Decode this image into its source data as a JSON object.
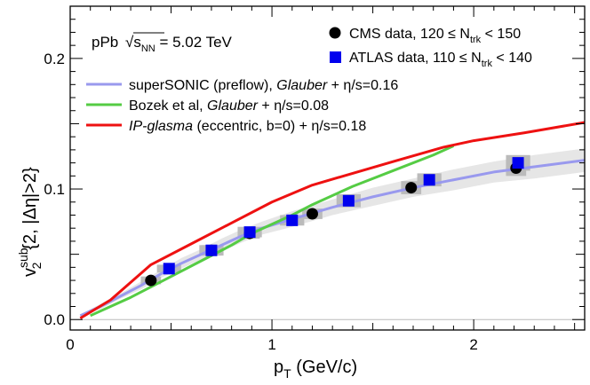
{
  "chart_data": {
    "type": "scatter",
    "title": "",
    "system_label": "pPb",
    "sqrt_snn_symbol": "s",
    "sqrt_snn_sub": "NN",
    "energy_text": " = 5.02 TeV",
    "xlabel": {
      "main": "p",
      "sub": "T",
      "rest": " (GeV/c)"
    },
    "ylabel": {
      "main": "v",
      "sub": "2",
      "sup": "sub",
      "rest": "{2, |Δη|>2}"
    },
    "xlim": [
      0,
      2.55
    ],
    "ylim": [
      -0.008,
      0.24
    ],
    "x_ticks": [
      0,
      1,
      2
    ],
    "x_tick_labels": [
      "0",
      "1",
      "2"
    ],
    "y_ticks": [
      0.0,
      0.1,
      0.2
    ],
    "y_tick_labels": [
      "0.0",
      "0.1",
      "0.2"
    ],
    "colors": {
      "cms": "#000000",
      "atlas": "#0000ee",
      "supersonic": "#9999ee",
      "bozek": "#55cc44",
      "ipglasma": "#ee1111",
      "band": "#e6e6e6",
      "syst": "#bbbbbb",
      "zero_line": "#bbbbbb"
    },
    "legend_data": [
      {
        "key": "cms",
        "marker": "circle",
        "prefix": "CMS data, 120 ≤ N",
        "sub": "trk",
        "suffix": " < 150"
      },
      {
        "key": "atlas",
        "marker": "square",
        "prefix": "ATLAS data, 110 ≤ N",
        "sub": "trk",
        "suffix": " < 140"
      }
    ],
    "legend_models": [
      {
        "key": "supersonic",
        "pre": "superSONIC (preflow), ",
        "ital": "Glauber",
        "post": " + η/s=0.16"
      },
      {
        "key": "bozek",
        "pre": "Bozek et al, ",
        "ital": "Glauber",
        "post": " + η/s=0.08"
      },
      {
        "key": "ipglasma",
        "pre": "",
        "ital": "IP-glasma",
        "post": " (eccentric, b=0) + η/s=0.18"
      }
    ],
    "series": [
      {
        "name": "CMS data",
        "key": "cms",
        "kind": "points",
        "marker": "circle",
        "x": [
          0.4,
          0.7,
          0.89,
          1.2,
          1.69,
          2.21
        ],
        "y": [
          0.03,
          0.053,
          0.066,
          0.081,
          0.101,
          0.116
        ],
        "syst_halfwidth": 0.05,
        "syst": [
          0.003,
          0.004,
          0.004,
          0.004,
          0.005,
          0.006
        ]
      },
      {
        "name": "ATLAS data",
        "key": "atlas",
        "kind": "points",
        "marker": "square",
        "x": [
          0.49,
          0.7,
          0.89,
          1.1,
          1.38,
          1.78,
          2.22
        ],
        "y": [
          0.039,
          0.053,
          0.067,
          0.076,
          0.091,
          0.107,
          0.12
        ],
        "syst_halfwidth": 0.06,
        "syst": [
          0.003,
          0.004,
          0.004,
          0.004,
          0.005,
          0.005,
          0.006
        ]
      },
      {
        "name": "superSONIC (preflow), Glauber + η/s=0.16",
        "key": "supersonic",
        "kind": "band_line",
        "x": [
          0.05,
          0.15,
          0.25,
          0.35,
          0.45,
          0.55,
          0.65,
          0.75,
          0.85,
          0.95,
          1.1,
          1.3,
          1.5,
          1.7,
          1.9,
          2.1,
          2.3,
          2.55
        ],
        "y": [
          0.003,
          0.01,
          0.018,
          0.026,
          0.035,
          0.043,
          0.05,
          0.057,
          0.064,
          0.07,
          0.077,
          0.086,
          0.094,
          0.101,
          0.107,
          0.113,
          0.117,
          0.122
        ],
        "band": [
          0.001,
          0.002,
          0.002,
          0.003,
          0.003,
          0.004,
          0.004,
          0.005,
          0.005,
          0.005,
          0.006,
          0.006,
          0.007,
          0.007,
          0.008,
          0.008,
          0.009,
          0.009
        ]
      },
      {
        "name": "Bozek et al, Glauber + η/s=0.08",
        "key": "bozek",
        "kind": "line",
        "x": [
          0.1,
          0.2,
          0.3,
          0.4,
          0.5,
          0.6,
          0.7,
          0.8,
          0.9,
          1.0,
          1.1,
          1.2,
          1.4,
          1.6,
          1.8,
          1.9
        ],
        "y": [
          0.003,
          0.01,
          0.017,
          0.025,
          0.033,
          0.041,
          0.049,
          0.057,
          0.066,
          0.073,
          0.08,
          0.088,
          0.102,
          0.114,
          0.126,
          0.133
        ]
      },
      {
        "name": "IP-glasma (eccentric, b=0) + η/s=0.18",
        "key": "ipglasma",
        "kind": "line",
        "x": [
          0.05,
          0.2,
          0.4,
          0.6,
          0.8,
          1.0,
          1.2,
          1.4,
          1.6,
          1.85,
          2.0,
          2.25,
          2.55
        ],
        "y": [
          0.001,
          0.015,
          0.042,
          0.058,
          0.074,
          0.09,
          0.103,
          0.112,
          0.121,
          0.132,
          0.137,
          0.143,
          0.151
        ]
      }
    ]
  }
}
